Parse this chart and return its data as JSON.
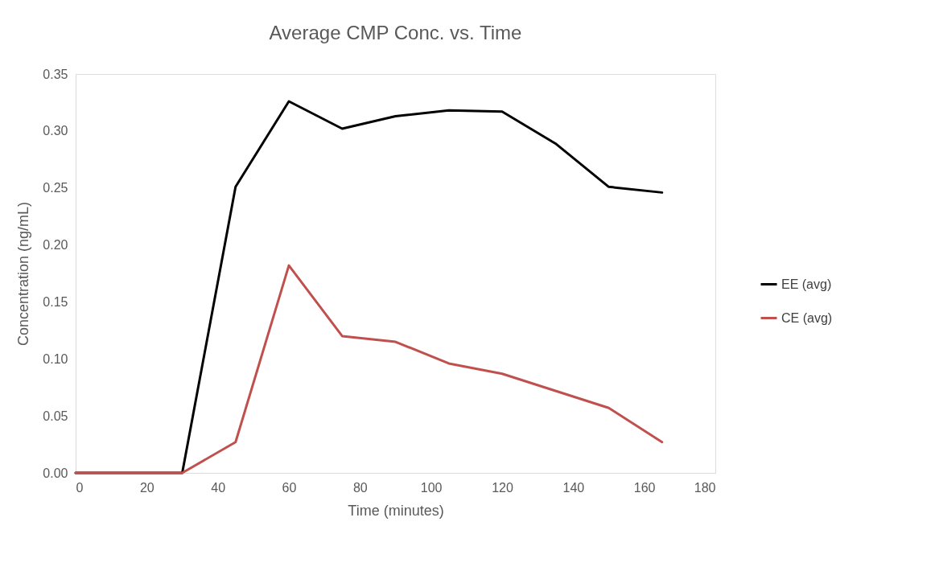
{
  "chart_data": {
    "type": "line",
    "title": "Average CMP Conc. vs. Time",
    "xlabel": "Time (minutes)",
    "ylabel": "Concentration (ng/mL)",
    "x": [
      0,
      15,
      30,
      45,
      60,
      75,
      90,
      105,
      120,
      135,
      150,
      165
    ],
    "series": [
      {
        "name": "EE (avg)",
        "color": "#000000",
        "values": [
          0,
          0,
          0,
          0.251,
          0.326,
          0.302,
          0.313,
          0.318,
          0.317,
          0.289,
          0.251,
          0.246
        ]
      },
      {
        "name": "CE (avg)",
        "color": "#c0504d",
        "values": [
          0,
          0,
          0,
          0.027,
          0.182,
          0.12,
          0.115,
          0.096,
          0.087,
          0.072,
          0.057,
          0.027
        ]
      }
    ],
    "xlim": [
      0,
      180
    ],
    "xticks": [
      0,
      20,
      40,
      60,
      80,
      100,
      120,
      140,
      160,
      180
    ],
    "ylim": [
      0,
      0.35
    ],
    "yticks": [
      {
        "value": 0,
        "label": "0.00"
      },
      {
        "value": 0.05,
        "label": "0.05"
      },
      {
        "value": 0.1,
        "label": "0.10"
      },
      {
        "value": 0.15,
        "label": "0.15"
      },
      {
        "value": 0.2,
        "label": "0.20"
      },
      {
        "value": 0.25,
        "label": "0.25"
      },
      {
        "value": 0.3,
        "label": "0.30"
      },
      {
        "value": 0.35,
        "label": "0.35"
      }
    ],
    "grid": false,
    "legend": "right",
    "marker": "none",
    "line_style": "solid"
  }
}
